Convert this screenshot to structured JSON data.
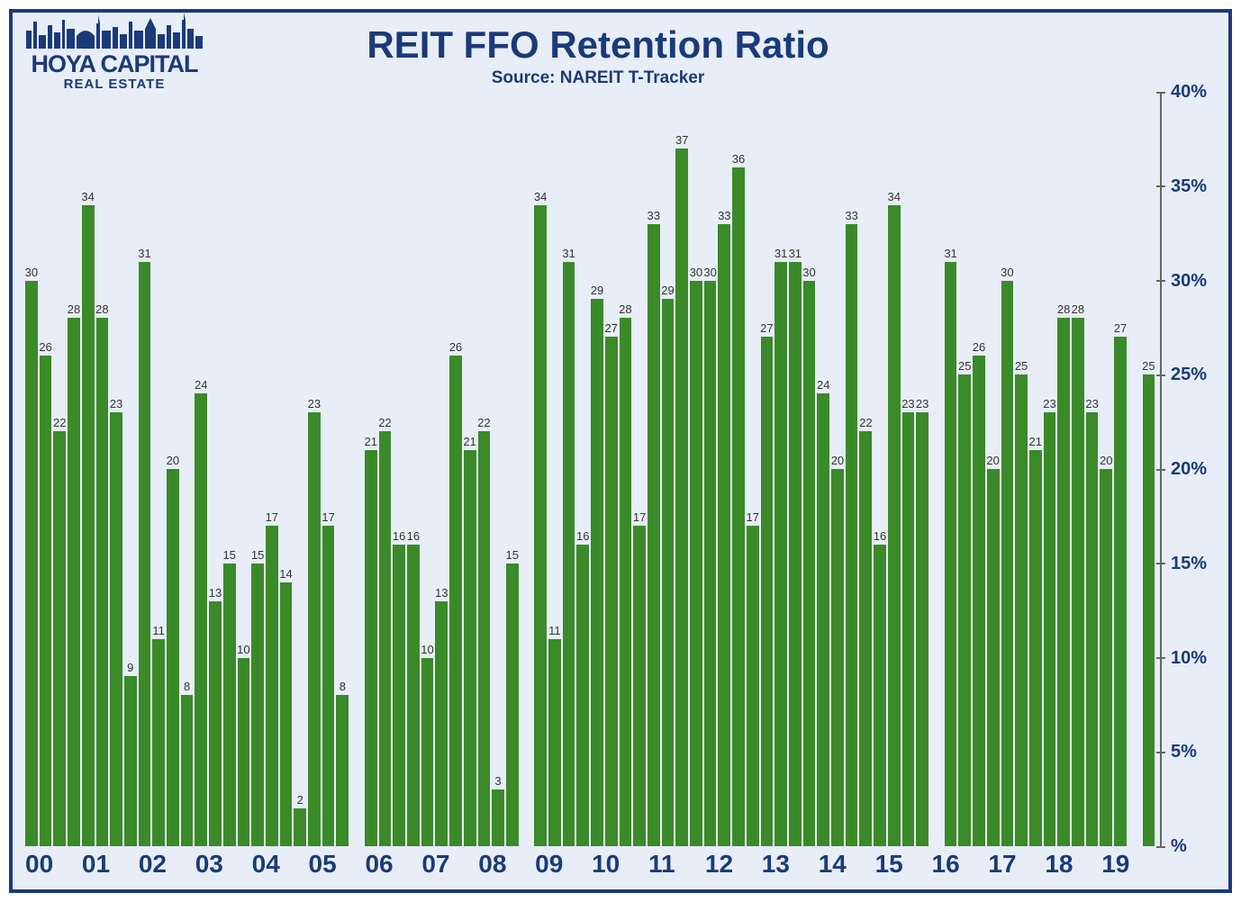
{
  "logo": {
    "main": "HOYA CAPITAL",
    "sub": "REAL ESTATE"
  },
  "chart": {
    "type": "bar",
    "title": "REIT FFO Retention Ratio",
    "subtitle": "Source: NAREIT T-Tracker",
    "title_color": "#1a3a7a",
    "title_fontsize": 42,
    "subtitle_fontsize": 19,
    "background_color": "#e8eef7",
    "border_color": "#1a3a7a",
    "bar_color": "#3a8a2a",
    "label_fontsize": 13,
    "axis_label_color": "#1a3a7a",
    "axis_label_fontsize": 20,
    "x_label_fontsize": 28,
    "ylim": [
      0,
      40
    ],
    "ytick_step": 5,
    "y_ticks": [
      {
        "value": 0,
        "label": "%"
      },
      {
        "value": 5,
        "label": "5%"
      },
      {
        "value": 10,
        "label": "10%"
      },
      {
        "value": 15,
        "label": "15%"
      },
      {
        "value": 20,
        "label": "20%"
      },
      {
        "value": 25,
        "label": "25%"
      },
      {
        "value": 30,
        "label": "30%"
      },
      {
        "value": 35,
        "label": "35%"
      },
      {
        "value": 40,
        "label": "40%"
      }
    ],
    "years": [
      "00",
      "01",
      "02",
      "03",
      "04",
      "05",
      "06",
      "07",
      "08",
      "09",
      "10",
      "11",
      "12",
      "13",
      "14",
      "15",
      "16",
      "17",
      "18",
      "19"
    ],
    "values": [
      30,
      26,
      22,
      28,
      34,
      28,
      23,
      9,
      31,
      11,
      20,
      8,
      24,
      13,
      15,
      10,
      15,
      17,
      14,
      2,
      23,
      17,
      8,
      null,
      21,
      22,
      16,
      16,
      10,
      13,
      26,
      21,
      22,
      3,
      15,
      null,
      34,
      11,
      31,
      16,
      29,
      27,
      28,
      17,
      33,
      29,
      37,
      30,
      30,
      33,
      36,
      17,
      27,
      31,
      31,
      30,
      24,
      20,
      33,
      22,
      16,
      34,
      23,
      23,
      null,
      31,
      25,
      26,
      20,
      30,
      25,
      21,
      23,
      28,
      28,
      23,
      20,
      27,
      null,
      25
    ]
  }
}
